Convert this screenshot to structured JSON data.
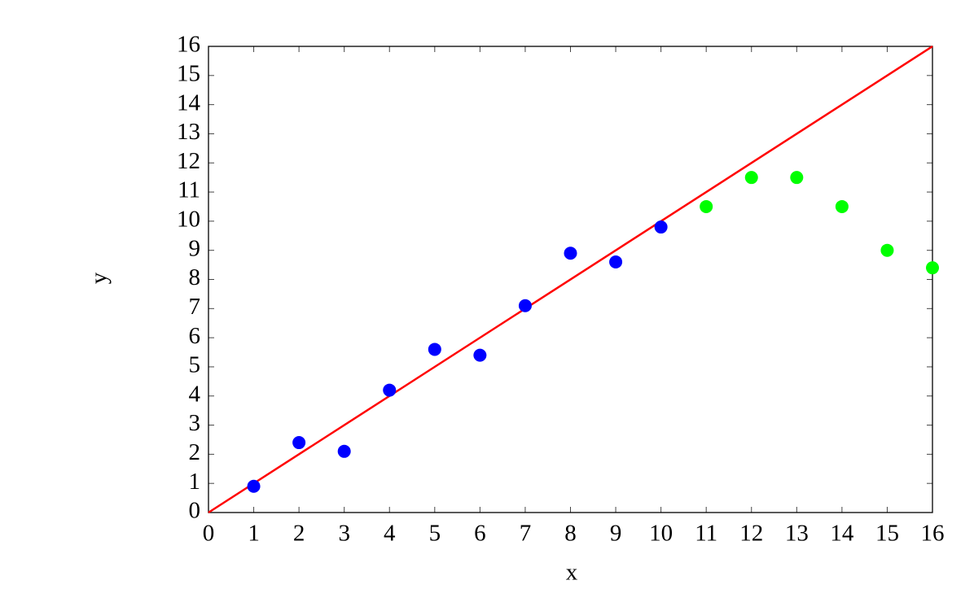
{
  "chart_data": {
    "type": "scatter",
    "xlabel": "x",
    "ylabel": "y",
    "xlim": [
      0,
      16
    ],
    "ylim": [
      0,
      16
    ],
    "xticks": [
      0,
      1,
      2,
      3,
      4,
      5,
      6,
      7,
      8,
      9,
      10,
      11,
      12,
      13,
      14,
      15,
      16
    ],
    "yticks": [
      0,
      1,
      2,
      3,
      4,
      5,
      6,
      7,
      8,
      9,
      10,
      11,
      12,
      13,
      14,
      15,
      16
    ],
    "series": [
      {
        "type": "scatter",
        "color": "#0000ff",
        "x": [
          1,
          2,
          3,
          4,
          5,
          6,
          7,
          8,
          9,
          10
        ],
        "values": [
          0.9,
          2.4,
          2.1,
          4.2,
          5.6,
          5.4,
          7.1,
          8.9,
          8.6,
          9.8
        ]
      },
      {
        "type": "scatter",
        "color": "#00ff00",
        "x": [
          11,
          12,
          13,
          14,
          15,
          16
        ],
        "values": [
          10.5,
          11.5,
          11.5,
          10.5,
          9,
          8.4
        ]
      },
      {
        "type": "line",
        "color": "#ff0000",
        "x": [
          0,
          16
        ],
        "values": [
          0,
          16
        ]
      }
    ]
  }
}
